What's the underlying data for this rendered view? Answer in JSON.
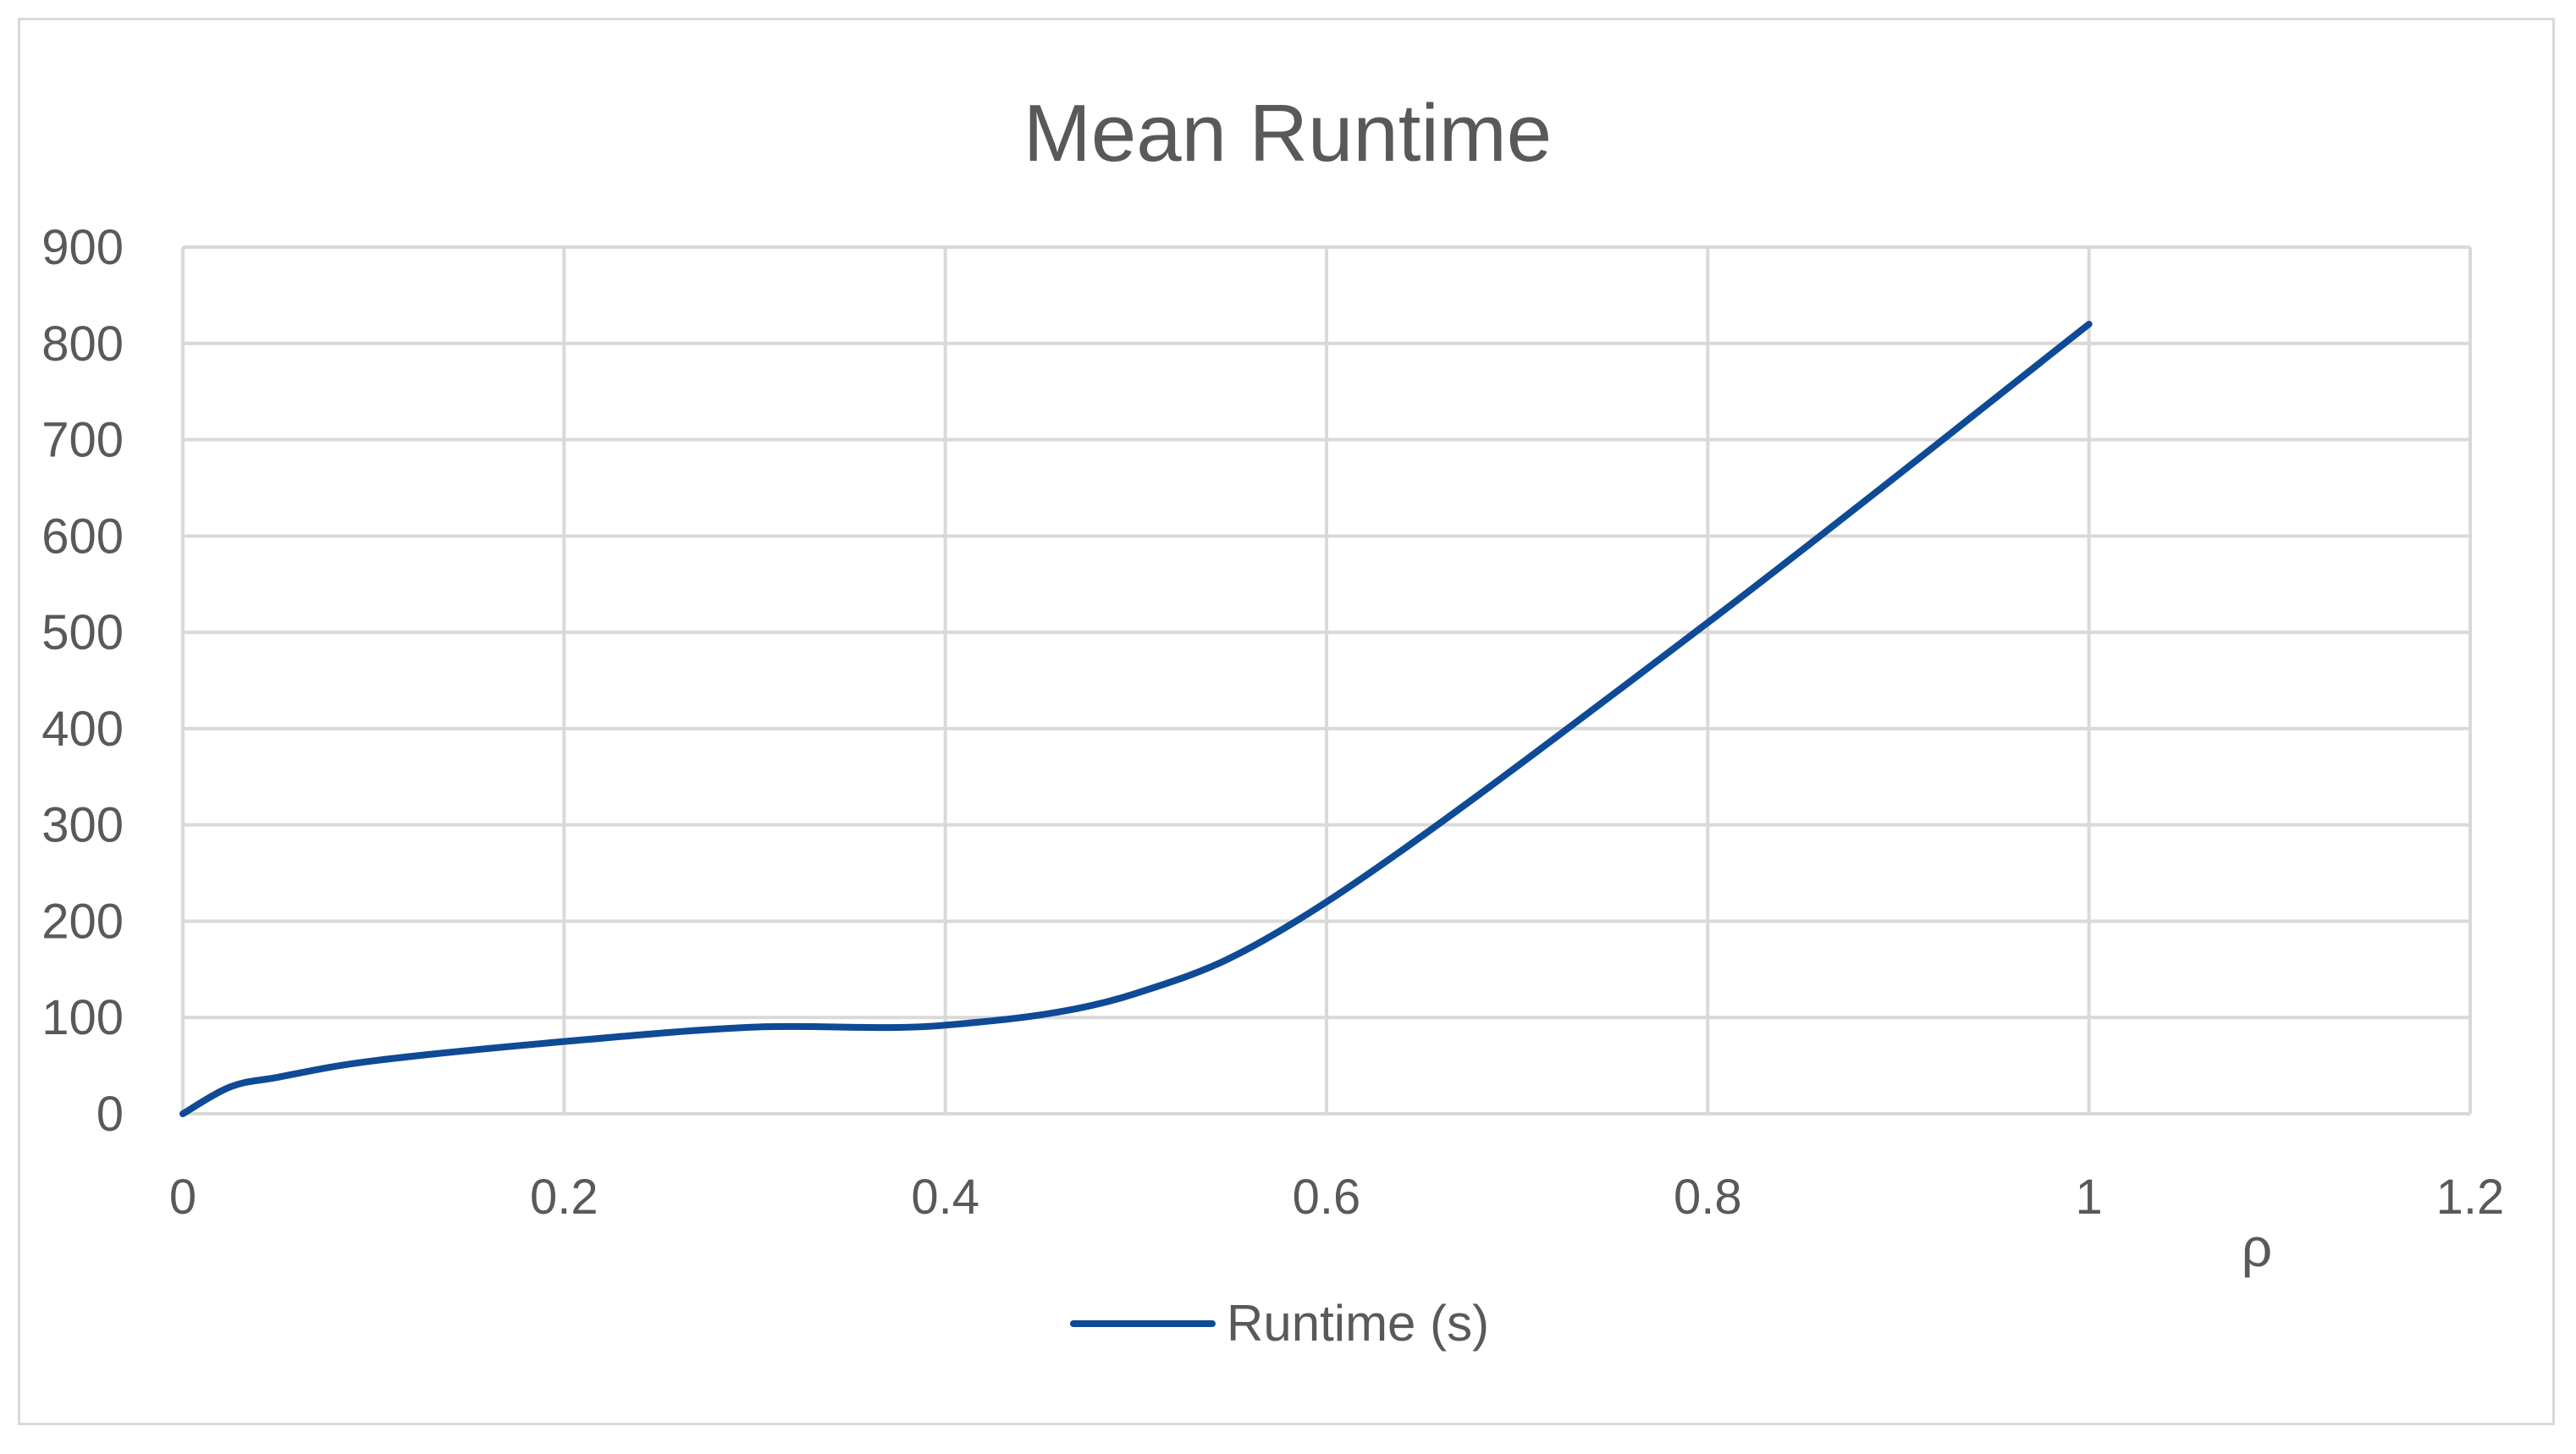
{
  "chart_data": {
    "type": "line",
    "title": "Mean Runtime",
    "xlabel": "ρ",
    "ylabel": "",
    "xlim": [
      0,
      1.2
    ],
    "ylim": [
      0,
      900
    ],
    "x_ticks": [
      "0",
      "0.2",
      "0.4",
      "0.6",
      "0.8",
      "1",
      "1.2"
    ],
    "x_tick_values": [
      0,
      0.2,
      0.4,
      0.6,
      0.8,
      1.0,
      1.2
    ],
    "y_ticks": [
      "0",
      "100",
      "200",
      "300",
      "400",
      "500",
      "600",
      "700",
      "800",
      "900"
    ],
    "y_tick_values": [
      0,
      100,
      200,
      300,
      400,
      500,
      600,
      700,
      800,
      900
    ],
    "grid": true,
    "legend_position": "bottom",
    "series": [
      {
        "name": "Runtime (s)",
        "color": "#0e4a96",
        "x": [
          0,
          0.025,
          0.05,
          0.1,
          0.2,
          0.3,
          0.4,
          0.5,
          0.6,
          0.8,
          1.0
        ],
        "y": [
          0,
          28,
          38,
          55,
          75,
          90,
          92,
          125,
          220,
          510,
          820
        ]
      }
    ]
  }
}
